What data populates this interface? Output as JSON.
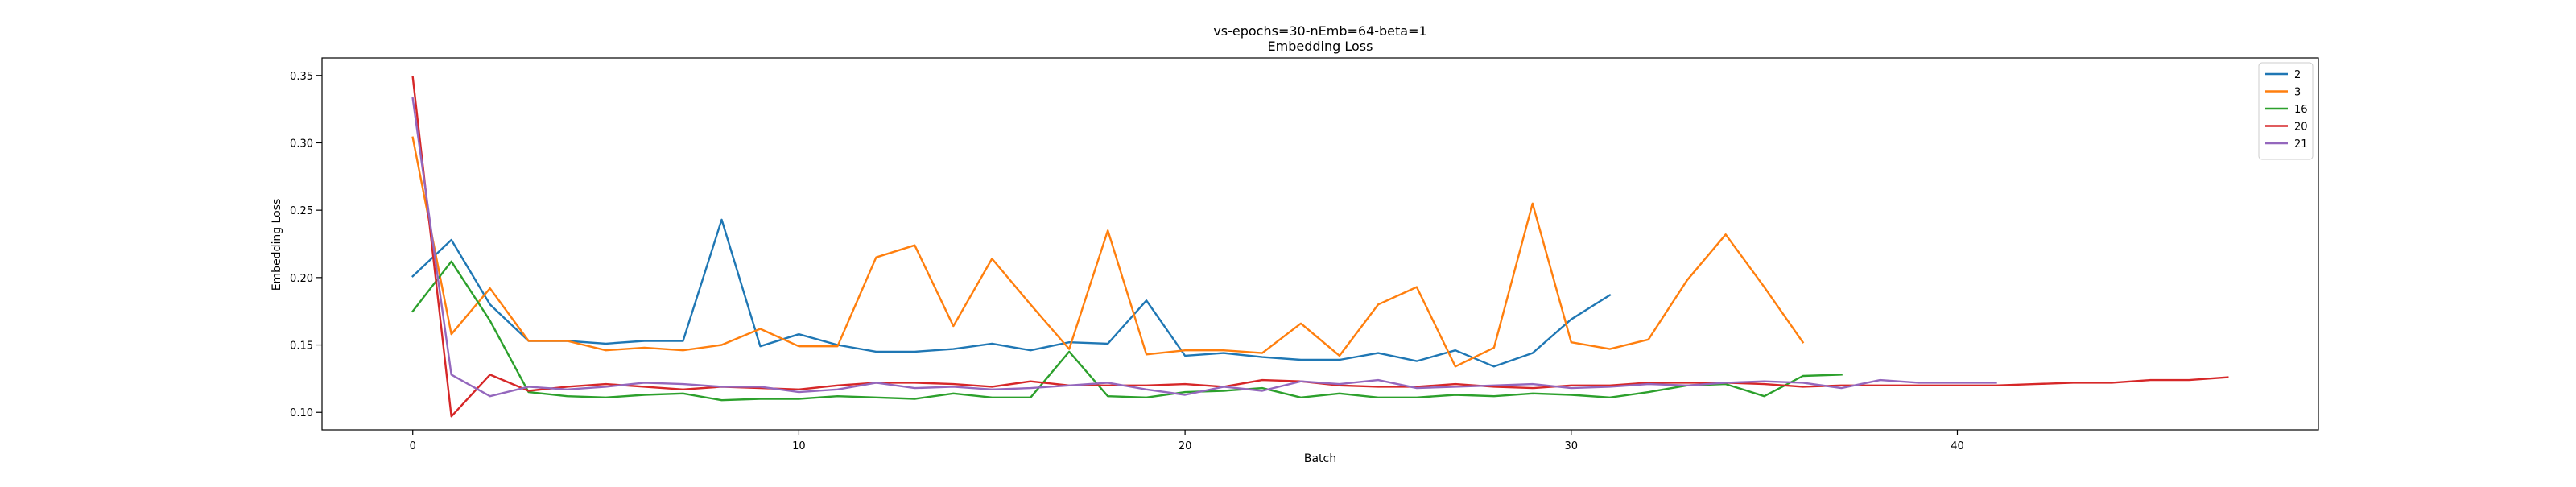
{
  "chart_data": {
    "type": "line",
    "title": "vs-epochs=30-nEmb=64-beta=1",
    "subtitle": "Embedding Loss",
    "xlabel": "Batch",
    "ylabel": "Embedding Loss",
    "xlim": [
      -2.35,
      49.35
    ],
    "ylim": [
      0.087,
      0.363
    ],
    "xticks": [
      0,
      10,
      20,
      30,
      40
    ],
    "yticks": [
      0.1,
      0.15,
      0.2,
      0.25,
      0.3,
      0.35
    ],
    "ytick_labels": [
      "0.10",
      "0.15",
      "0.20",
      "0.25",
      "0.30",
      "0.35"
    ],
    "grid": false,
    "legend": "top-right",
    "series": [
      {
        "name": "2",
        "color": "#1f77b4",
        "values": [
          0.201,
          0.228,
          0.18,
          0.153,
          0.153,
          0.151,
          0.153,
          0.153,
          0.243,
          0.149,
          0.158,
          0.15,
          0.145,
          0.145,
          0.147,
          0.151,
          0.146,
          0.152,
          0.151,
          0.183,
          0.142,
          0.144,
          0.141,
          0.139,
          0.139,
          0.144,
          0.138,
          0.146,
          0.134,
          0.144,
          0.169,
          0.187
        ]
      },
      {
        "name": "3",
        "color": "#ff7f0e",
        "values": [
          0.304,
          0.158,
          0.192,
          0.153,
          0.153,
          0.146,
          0.148,
          0.146,
          0.15,
          0.162,
          0.149,
          0.149,
          0.215,
          0.224,
          0.164,
          0.214,
          0.18,
          0.147,
          0.235,
          0.143,
          0.146,
          0.146,
          0.144,
          0.166,
          0.142,
          0.18,
          0.193,
          0.134,
          0.148,
          0.255,
          0.152,
          0.147,
          0.154,
          0.198,
          0.232,
          0.193,
          0.152
        ]
      },
      {
        "name": "16",
        "color": "#2ca02c",
        "values": [
          0.175,
          0.212,
          0.168,
          0.115,
          0.112,
          0.111,
          0.113,
          0.114,
          0.109,
          0.11,
          0.11,
          0.112,
          0.111,
          0.11,
          0.114,
          0.111,
          0.111,
          0.145,
          0.112,
          0.111,
          0.115,
          0.116,
          0.118,
          0.111,
          0.114,
          0.111,
          0.111,
          0.113,
          0.112,
          0.114,
          0.113,
          0.111,
          0.115,
          0.12,
          0.121,
          0.112,
          0.127,
          0.128
        ]
      },
      {
        "name": "20",
        "color": "#d62728",
        "values": [
          0.349,
          0.097,
          0.128,
          0.116,
          0.119,
          0.121,
          0.119,
          0.117,
          0.119,
          0.118,
          0.117,
          0.12,
          0.122,
          0.122,
          0.121,
          0.119,
          0.123,
          0.12,
          0.12,
          0.12,
          0.121,
          0.119,
          0.124,
          0.123,
          0.12,
          0.119,
          0.119,
          0.121,
          0.119,
          0.118,
          0.12,
          0.12,
          0.122,
          0.122,
          0.122,
          0.121,
          0.119,
          0.12,
          0.12,
          0.12,
          0.12,
          0.12,
          0.121,
          0.122,
          0.122,
          0.124,
          0.124,
          0.126
        ]
      },
      {
        "name": "21",
        "color": "#9467bd",
        "values": [
          0.333,
          0.128,
          0.112,
          0.119,
          0.117,
          0.119,
          0.122,
          0.121,
          0.119,
          0.119,
          0.115,
          0.117,
          0.122,
          0.118,
          0.119,
          0.117,
          0.118,
          0.12,
          0.122,
          0.117,
          0.113,
          0.119,
          0.116,
          0.123,
          0.121,
          0.124,
          0.118,
          0.119,
          0.12,
          0.121,
          0.118,
          0.119,
          0.121,
          0.12,
          0.122,
          0.123,
          0.122,
          0.118,
          0.124,
          0.122,
          0.122,
          0.122
        ]
      }
    ]
  }
}
